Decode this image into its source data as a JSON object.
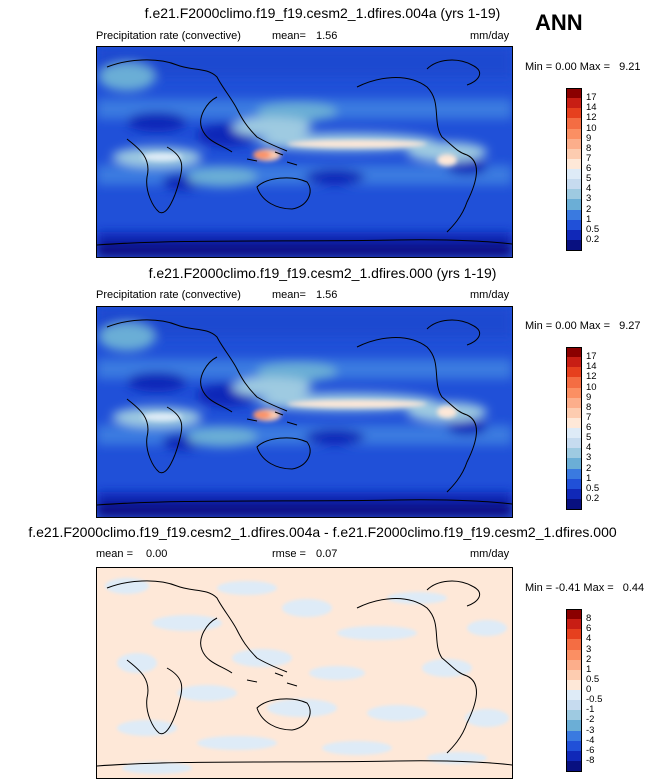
{
  "season": "ANN",
  "panels": [
    {
      "title": "f.e21.F2000climo.f19_f19.cesm2_1.dfires.004a (yrs 1-19)",
      "variable": "Precipitation rate (convective)",
      "stat1_label": "mean=",
      "stat1_value": "1.56",
      "stat2_label": "",
      "stat2_value": "",
      "units": "mm/day",
      "min_label": "Min =",
      "min_value": "0.00",
      "max_label": "Max =",
      "max_value": "9.21",
      "levels": [
        "17",
        "14",
        "12",
        "10",
        "9",
        "8",
        "7",
        "6",
        "5",
        "4",
        "3",
        "2",
        "1",
        "0.5",
        "0.2"
      ],
      "colors": [
        "#8b0000",
        "#c81e14",
        "#e6401e",
        "#f46d43",
        "#fb8f63",
        "#fcae8b",
        "#fdccb0",
        "#fee8d8",
        "#deebf7",
        "#c6dbef",
        "#9ecae1",
        "#6baed6",
        "#3a7ae0",
        "#2050d8",
        "#1028b8",
        "#081080"
      ]
    },
    {
      "title": "f.e21.F2000climo.f19_f19.cesm2_1.dfires.000 (yrs 1-19)",
      "variable": "Precipitation rate (convective)",
      "stat1_label": "mean=",
      "stat1_value": "1.56",
      "stat2_label": "",
      "stat2_value": "",
      "units": "mm/day",
      "min_label": "Min =",
      "min_value": "0.00",
      "max_label": "Max =",
      "max_value": "9.27",
      "levels": [
        "17",
        "14",
        "12",
        "10",
        "9",
        "8",
        "7",
        "6",
        "5",
        "4",
        "3",
        "2",
        "1",
        "0.5",
        "0.2"
      ],
      "colors": [
        "#8b0000",
        "#c81e14",
        "#e6401e",
        "#f46d43",
        "#fb8f63",
        "#fcae8b",
        "#fdccb0",
        "#fee8d8",
        "#deebf7",
        "#c6dbef",
        "#9ecae1",
        "#6baed6",
        "#3a7ae0",
        "#2050d8",
        "#1028b8",
        "#081080"
      ]
    },
    {
      "title": "f.e21.F2000climo.f19_f19.cesm2_1.dfires.004a - f.e21.F2000climo.f19_f19.cesm2_1.dfires.000",
      "variable": "",
      "stat1_label": "mean =",
      "stat1_value": "0.00",
      "stat2_label": "rmse =",
      "stat2_value": "0.07",
      "units": "mm/day",
      "min_label": "Min =",
      "min_value": "-0.41",
      "max_label": "Max =",
      "max_value": "0.44",
      "levels": [
        "8",
        "6",
        "4",
        "3",
        "2",
        "1",
        "0.5",
        "0",
        "-0.5",
        "-1",
        "-2",
        "-3",
        "-4",
        "-6",
        "-8"
      ],
      "colors": [
        "#8b0000",
        "#c81e14",
        "#e6401e",
        "#f46d43",
        "#fb8f63",
        "#fcae8b",
        "#fdccb0",
        "#fee8d8",
        "#deebf7",
        "#c6dbef",
        "#9ecae1",
        "#6baed6",
        "#3a7ae0",
        "#2050d8",
        "#1028b8",
        "#081080"
      ]
    }
  ],
  "chart_data": [
    {
      "type": "heatmap",
      "title": "f.e21.F2000climo.f19_f19.cesm2_1.dfires.004a (yrs 1-19)",
      "variable": "Precipitation rate (convective)",
      "units": "mm/day",
      "mean": 1.56,
      "min": 0.0,
      "max": 9.21,
      "colorbar_levels": [
        0.2,
        0.5,
        1,
        2,
        3,
        4,
        5,
        6,
        7,
        8,
        9,
        10,
        12,
        14,
        17
      ]
    },
    {
      "type": "heatmap",
      "title": "f.e21.F2000climo.f19_f19.cesm2_1.dfires.000 (yrs 1-19)",
      "variable": "Precipitation rate (convective)",
      "units": "mm/day",
      "mean": 1.56,
      "min": 0.0,
      "max": 9.27,
      "colorbar_levels": [
        0.2,
        0.5,
        1,
        2,
        3,
        4,
        5,
        6,
        7,
        8,
        9,
        10,
        12,
        14,
        17
      ]
    },
    {
      "type": "heatmap",
      "title": "f.e21.F2000climo.f19_f19.cesm2_1.dfires.004a - f.e21.F2000climo.f19_f19.cesm2_1.dfires.000",
      "units": "mm/day",
      "mean": 0.0,
      "rmse": 0.07,
      "min": -0.41,
      "max": 0.44,
      "colorbar_levels": [
        -8,
        -6,
        -4,
        -3,
        -2,
        -1,
        -0.5,
        0,
        0.5,
        1,
        2,
        3,
        4,
        6,
        8
      ]
    }
  ]
}
